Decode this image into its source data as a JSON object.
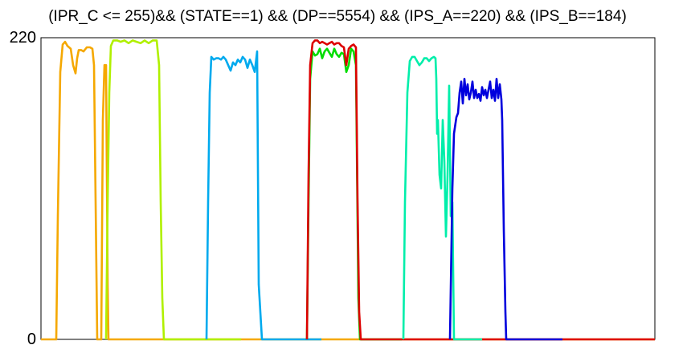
{
  "chart_data": {
    "type": "line",
    "title": "(IPR_C <= 255)&& (STATE==1) && (DP==5554) && (IPS_A==220) && (IPS_B==184)",
    "xlabel": "",
    "ylabel": "",
    "ylim": [
      0,
      220
    ],
    "y_ticks": [
      "0",
      "220"
    ],
    "grid": false,
    "legend": "none",
    "series": [
      {
        "color": "#F5A800",
        "points": [
          [
            0,
            0
          ],
          [
            70,
            0
          ],
          [
            72,
            90
          ],
          [
            75,
            195
          ],
          [
            78,
            215
          ],
          [
            81,
            217
          ],
          [
            84,
            214
          ],
          [
            88,
            212
          ],
          [
            91,
            200
          ],
          [
            94,
            194
          ],
          [
            96,
            205
          ],
          [
            98,
            211
          ],
          [
            101,
            211
          ],
          [
            104,
            210
          ],
          [
            108,
            213
          ],
          [
            112,
            213
          ],
          [
            115,
            212
          ],
          [
            117,
            200
          ],
          [
            119,
            100
          ],
          [
            121,
            0
          ],
          [
            126,
            0
          ],
          [
            128,
            160
          ],
          [
            130,
            200
          ],
          [
            132,
            200
          ],
          [
            134,
            40
          ],
          [
            135,
            0
          ],
          [
            139,
            0
          ],
          [
            160,
            0
          ],
          [
            440,
            0
          ],
          [
            815,
            0
          ]
        ]
      },
      {
        "color": "#B0F000",
        "points": [
          [
            132,
            0
          ],
          [
            134,
            100
          ],
          [
            136,
            180
          ],
          [
            138,
            214
          ],
          [
            141,
            218
          ],
          [
            146,
            218
          ],
          [
            150,
            217
          ],
          [
            155,
            218
          ],
          [
            160,
            216
          ],
          [
            165,
            218
          ],
          [
            170,
            217
          ],
          [
            175,
            216
          ],
          [
            180,
            218
          ],
          [
            185,
            216
          ],
          [
            190,
            218
          ],
          [
            195,
            218
          ],
          [
            198,
            200
          ],
          [
            200,
            100
          ],
          [
            202,
            30
          ],
          [
            204,
            0
          ],
          [
            300,
            0
          ]
        ]
      },
      {
        "color": "#00AAEE",
        "points": [
          [
            257,
            0
          ],
          [
            259,
            100
          ],
          [
            261,
            180
          ],
          [
            263,
            206
          ],
          [
            266,
            204
          ],
          [
            269,
            205
          ],
          [
            272,
            205
          ],
          [
            275,
            204
          ],
          [
            278,
            206
          ],
          [
            281,
            204
          ],
          [
            284,
            200
          ],
          [
            287,
            196
          ],
          [
            290,
            202
          ],
          [
            293,
            200
          ],
          [
            296,
            204
          ],
          [
            299,
            202
          ],
          [
            302,
            206
          ],
          [
            305,
            204
          ],
          [
            308,
            198
          ],
          [
            311,
            204
          ],
          [
            314,
            200
          ],
          [
            317,
            195
          ],
          [
            320,
            210
          ],
          [
            322,
            40
          ],
          [
            326,
            0
          ],
          [
            400,
            0
          ]
        ]
      },
      {
        "color": "#00DD00",
        "points": [
          [
            382,
            0
          ],
          [
            384,
            100
          ],
          [
            386,
            190
          ],
          [
            389,
            210
          ],
          [
            392,
            207
          ],
          [
            395,
            208
          ],
          [
            398,
            212
          ],
          [
            401,
            205
          ],
          [
            404,
            210
          ],
          [
            407,
            212
          ],
          [
            410,
            209
          ],
          [
            413,
            206
          ],
          [
            416,
            212
          ],
          [
            419,
            208
          ],
          [
            422,
            206
          ],
          [
            425,
            209
          ],
          [
            428,
            208
          ],
          [
            431,
            195
          ],
          [
            434,
            200
          ],
          [
            437,
            212
          ],
          [
            440,
            210
          ],
          [
            443,
            200
          ],
          [
            446,
            30
          ],
          [
            448,
            0
          ],
          [
            500,
            0
          ]
        ]
      },
      {
        "color": "#DD0000",
        "points": [
          [
            382,
            0
          ],
          [
            384,
            120
          ],
          [
            386,
            200
          ],
          [
            389,
            216
          ],
          [
            392,
            218
          ],
          [
            395,
            218
          ],
          [
            398,
            216
          ],
          [
            401,
            217
          ],
          [
            404,
            216
          ],
          [
            407,
            215
          ],
          [
            410,
            216
          ],
          [
            413,
            217
          ],
          [
            416,
            215
          ],
          [
            419,
            216
          ],
          [
            422,
            216
          ],
          [
            425,
            214
          ],
          [
            428,
            213
          ],
          [
            431,
            200
          ],
          [
            434,
            212
          ],
          [
            437,
            214
          ],
          [
            440,
            215
          ],
          [
            443,
            213
          ],
          [
            445,
            100
          ],
          [
            447,
            20
          ],
          [
            449,
            0
          ],
          [
            600,
            0
          ],
          [
            815,
            0
          ]
        ]
      },
      {
        "color": "#00EEAA",
        "points": [
          [
            502,
            0
          ],
          [
            504,
            100
          ],
          [
            507,
            180
          ],
          [
            510,
            203
          ],
          [
            513,
            206
          ],
          [
            516,
            206
          ],
          [
            519,
            203
          ],
          [
            522,
            200
          ],
          [
            525,
            202
          ],
          [
            528,
            205
          ],
          [
            531,
            205
          ],
          [
            534,
            203
          ],
          [
            537,
            205
          ],
          [
            540,
            206
          ],
          [
            542,
            205
          ],
          [
            543,
            190
          ],
          [
            544,
            150
          ],
          [
            545,
            160
          ],
          [
            547,
            120
          ],
          [
            549,
            110
          ],
          [
            551,
            160
          ],
          [
            553,
            130
          ],
          [
            555,
            75
          ],
          [
            557,
            120
          ],
          [
            559,
            185
          ],
          [
            561,
            90
          ],
          [
            563,
            100
          ],
          [
            565,
            0
          ],
          [
            600,
            0
          ]
        ]
      },
      {
        "color": "#0000DD",
        "points": [
          [
            560,
            0
          ],
          [
            563,
            110
          ],
          [
            565,
            150
          ],
          [
            568,
            162
          ],
          [
            570,
            165
          ],
          [
            572,
            180
          ],
          [
            574,
            188
          ],
          [
            576,
            172
          ],
          [
            578,
            190
          ],
          [
            580,
            178
          ],
          [
            582,
            186
          ],
          [
            584,
            175
          ],
          [
            586,
            180
          ],
          [
            588,
            188
          ],
          [
            590,
            176
          ],
          [
            592,
            182
          ],
          [
            594,
            176
          ],
          [
            596,
            179
          ],
          [
            598,
            174
          ],
          [
            600,
            184
          ],
          [
            602,
            178
          ],
          [
            604,
            182
          ],
          [
            606,
            176
          ],
          [
            608,
            182
          ],
          [
            610,
            188
          ],
          [
            612,
            176
          ],
          [
            614,
            182
          ],
          [
            616,
            174
          ],
          [
            618,
            190
          ],
          [
            620,
            176
          ],
          [
            622,
            186
          ],
          [
            624,
            175
          ],
          [
            625,
            160
          ],
          [
            627,
            80
          ],
          [
            629,
            20
          ],
          [
            630,
            0
          ],
          [
            700,
            0
          ]
        ]
      }
    ]
  }
}
